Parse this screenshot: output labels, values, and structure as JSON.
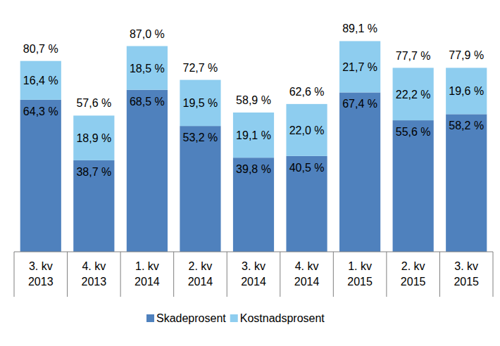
{
  "chart_data": {
    "type": "bar",
    "stacked": true,
    "data_labels": true,
    "legend": "bottom",
    "tick_labels": "x",
    "grid": false,
    "categories": [
      "3. kv 2013",
      "4. kv 2013",
      "1. kv 2014",
      "2. kv 2014",
      "3. kv 2014",
      "4. kv 2014",
      "1. kv 2015",
      "2. kv 2015",
      "3. kv 2015"
    ],
    "ylim": [
      0,
      105
    ],
    "series": [
      {
        "name": "Skadeprosent",
        "color": "#4f81bd",
        "values": [
          64.3,
          38.7,
          68.5,
          53.2,
          39.8,
          40.5,
          67.4,
          55.6,
          58.2
        ],
        "value_labels": [
          "64,3 %",
          "38,7 %",
          "68,5 %",
          "53,2 %",
          "39,8 %",
          "40,5 %",
          "67,4 %",
          "55,6 %",
          "58,2 %"
        ]
      },
      {
        "name": "Kostnadsprosent",
        "color": "#8ecdef",
        "values": [
          16.4,
          18.9,
          18.5,
          19.5,
          19.1,
          22.0,
          21.7,
          22.2,
          19.6
        ],
        "value_labels": [
          "16,4 %",
          "18,9 %",
          "18,5 %",
          "19,5 %",
          "19,1 %",
          "22,0 %",
          "21,7 %",
          "22,2 %",
          "19,6 %"
        ]
      }
    ],
    "totals": [
      80.7,
      57.6,
      87.0,
      72.7,
      58.9,
      62.6,
      89.1,
      77.7,
      77.9
    ],
    "total_labels": [
      "80,7 %",
      "57,6 %",
      "87,0 %",
      "72,7 %",
      "58,9 %",
      "62,6 %",
      "89,1 %",
      "77,7 %",
      "77,9 %"
    ]
  }
}
